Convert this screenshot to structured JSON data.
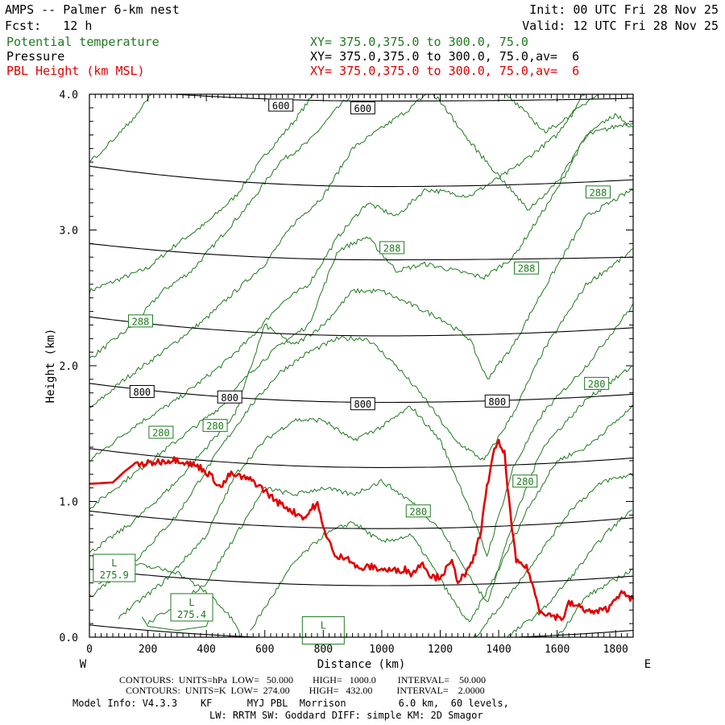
{
  "header": {
    "title": "AMPS -- Palmer 6-km nest",
    "fcst": "Fcst:   12 h",
    "init": "Init: 00 UTC Fri 28 Nov 25",
    "valid": "Valid: 12 UTC Fri 28 Nov 25",
    "field1": "Potential temperature",
    "field2": "Pressure",
    "field3": "PBL Height (km MSL)",
    "xy1": "XY= 375.0,375.0 to 300.0, 75.0",
    "xy2": "XY= 375.0,375.0 to 300.0, 75.0,av=  6",
    "xy3": "XY= 375.0,375.0 to 300.0, 75.0,av=  6"
  },
  "colors": {
    "theta": "#1f7a1f",
    "pressure": "#000000",
    "pbl": "#e00000"
  },
  "footer": {
    "contours_p": "CONTOURS:  UNITS=hPa  LOW=   50.000        HIGH=   1000.0         INTERVAL=    50.000",
    "contours_t": "CONTOURS:  UNITS=K  LOW=  274.00        HIGH=   432.00          INTERVAL=    2.0000",
    "model1": "Model Info: V4.3.3    KF      MYJ PBL  Morrison         6.0 km,  60 levels,",
    "model2": "LW: RRTM SW: Goddard DIFF: simple KM: 2D Smagor"
  },
  "chart_data": {
    "type": "line",
    "xlabel": "Distance (km)",
    "ylabel": "Height (km)",
    "xlim": [
      0,
      1860
    ],
    "ylim": [
      0,
      4.0
    ],
    "x_ticks": [
      "0",
      "200",
      "400",
      "600",
      "800",
      "1000",
      "1200",
      "1400",
      "1600",
      "1800"
    ],
    "y_ticks": [
      "0.0",
      "1.0",
      "2.0",
      "3.0",
      "4.0"
    ],
    "x_end_left": "W",
    "x_end_right": "E",
    "pbl_series": {
      "name": "PBL Height (km MSL)",
      "x": [
        0,
        80,
        120,
        150,
        200,
        260,
        300,
        340,
        380,
        420,
        450,
        480,
        520,
        560,
        600,
        640,
        680,
        700,
        740,
        760,
        780,
        800,
        820,
        840,
        880,
        920,
        960,
        1000,
        1040,
        1080,
        1100,
        1120,
        1140,
        1160,
        1180,
        1200,
        1220,
        1240,
        1260,
        1280,
        1300,
        1320,
        1340,
        1360,
        1380,
        1400,
        1420,
        1440,
        1460,
        1480,
        1500,
        1520,
        1540,
        1580,
        1620,
        1640,
        1680,
        1720,
        1760,
        1780,
        1800,
        1820,
        1860
      ],
      "y": [
        1.13,
        1.14,
        1.22,
        1.27,
        1.28,
        1.3,
        1.31,
        1.28,
        1.25,
        1.18,
        1.1,
        1.2,
        1.18,
        1.15,
        1.08,
        1.0,
        0.95,
        0.92,
        0.88,
        0.95,
        0.98,
        0.8,
        0.72,
        0.58,
        0.6,
        0.5,
        0.52,
        0.5,
        0.49,
        0.5,
        0.47,
        0.5,
        0.56,
        0.47,
        0.44,
        0.45,
        0.5,
        0.55,
        0.42,
        0.45,
        0.5,
        0.62,
        0.8,
        1.1,
        1.35,
        1.43,
        1.35,
        0.9,
        0.55,
        0.54,
        0.5,
        0.35,
        0.2,
        0.16,
        0.14,
        0.25,
        0.22,
        0.18,
        0.2,
        0.22,
        0.3,
        0.32,
        0.28
      ]
    },
    "pressure_contours": [
      {
        "label": "600",
        "y_left": 4.05,
        "y_mid": 3.95,
        "y_right": 3.97
      },
      {
        "label": "",
        "y_left": 3.47,
        "y_mid": 3.32,
        "y_right": 3.37
      },
      {
        "label": "",
        "y_left": 2.9,
        "y_mid": 2.78,
        "y_right": 2.8
      },
      {
        "label": "",
        "y_left": 2.36,
        "y_mid": 2.22,
        "y_right": 2.28
      },
      {
        "label": "800",
        "y_left": 1.87,
        "y_mid": 1.73,
        "y_right": 1.79
      },
      {
        "label": "",
        "y_left": 1.39,
        "y_mid": 1.25,
        "y_right": 1.32
      },
      {
        "label": "",
        "y_left": 0.93,
        "y_mid": 0.8,
        "y_right": 0.88
      },
      {
        "label": "",
        "y_left": 0.5,
        "y_mid": 0.38,
        "y_right": 0.45
      },
      {
        "label": "",
        "y_left": 0.09,
        "y_mid": -0.02,
        "y_right": 0.05
      }
    ],
    "pressure_labels": [
      {
        "text": "600",
        "x": 655,
        "y": 3.92
      },
      {
        "text": "600",
        "x": 935,
        "y": 3.9
      },
      {
        "text": "800",
        "x": 180,
        "y": 1.81
      },
      {
        "text": "800",
        "x": 480,
        "y": 1.77
      },
      {
        "text": "800",
        "x": 935,
        "y": 1.72
      },
      {
        "text": "800",
        "x": 1395,
        "y": 1.74
      }
    ],
    "theta_labels": [
      {
        "text": "288",
        "x": 1740,
        "y": 3.28
      },
      {
        "text": "288",
        "x": 1035,
        "y": 2.87
      },
      {
        "text": "288",
        "x": 1495,
        "y": 2.72
      },
      {
        "text": "288",
        "x": 175,
        "y": 2.33
      },
      {
        "text": "280",
        "x": 1735,
        "y": 1.87
      },
      {
        "text": "280",
        "x": 245,
        "y": 1.51
      },
      {
        "text": "280",
        "x": 430,
        "y": 1.56
      },
      {
        "text": "280",
        "x": 1490,
        "y": 1.15
      },
      {
        "text": "280",
        "x": 1125,
        "y": 0.93
      }
    ],
    "lows": [
      {
        "letter": "L",
        "value": "275.9",
        "x": 85,
        "y": 0.51
      },
      {
        "letter": "L",
        "value": "275.4",
        "x": 350,
        "y": 0.22
      },
      {
        "letter": "L",
        "value": "",
        "x": 800,
        "y": 0.05
      }
    ]
  }
}
